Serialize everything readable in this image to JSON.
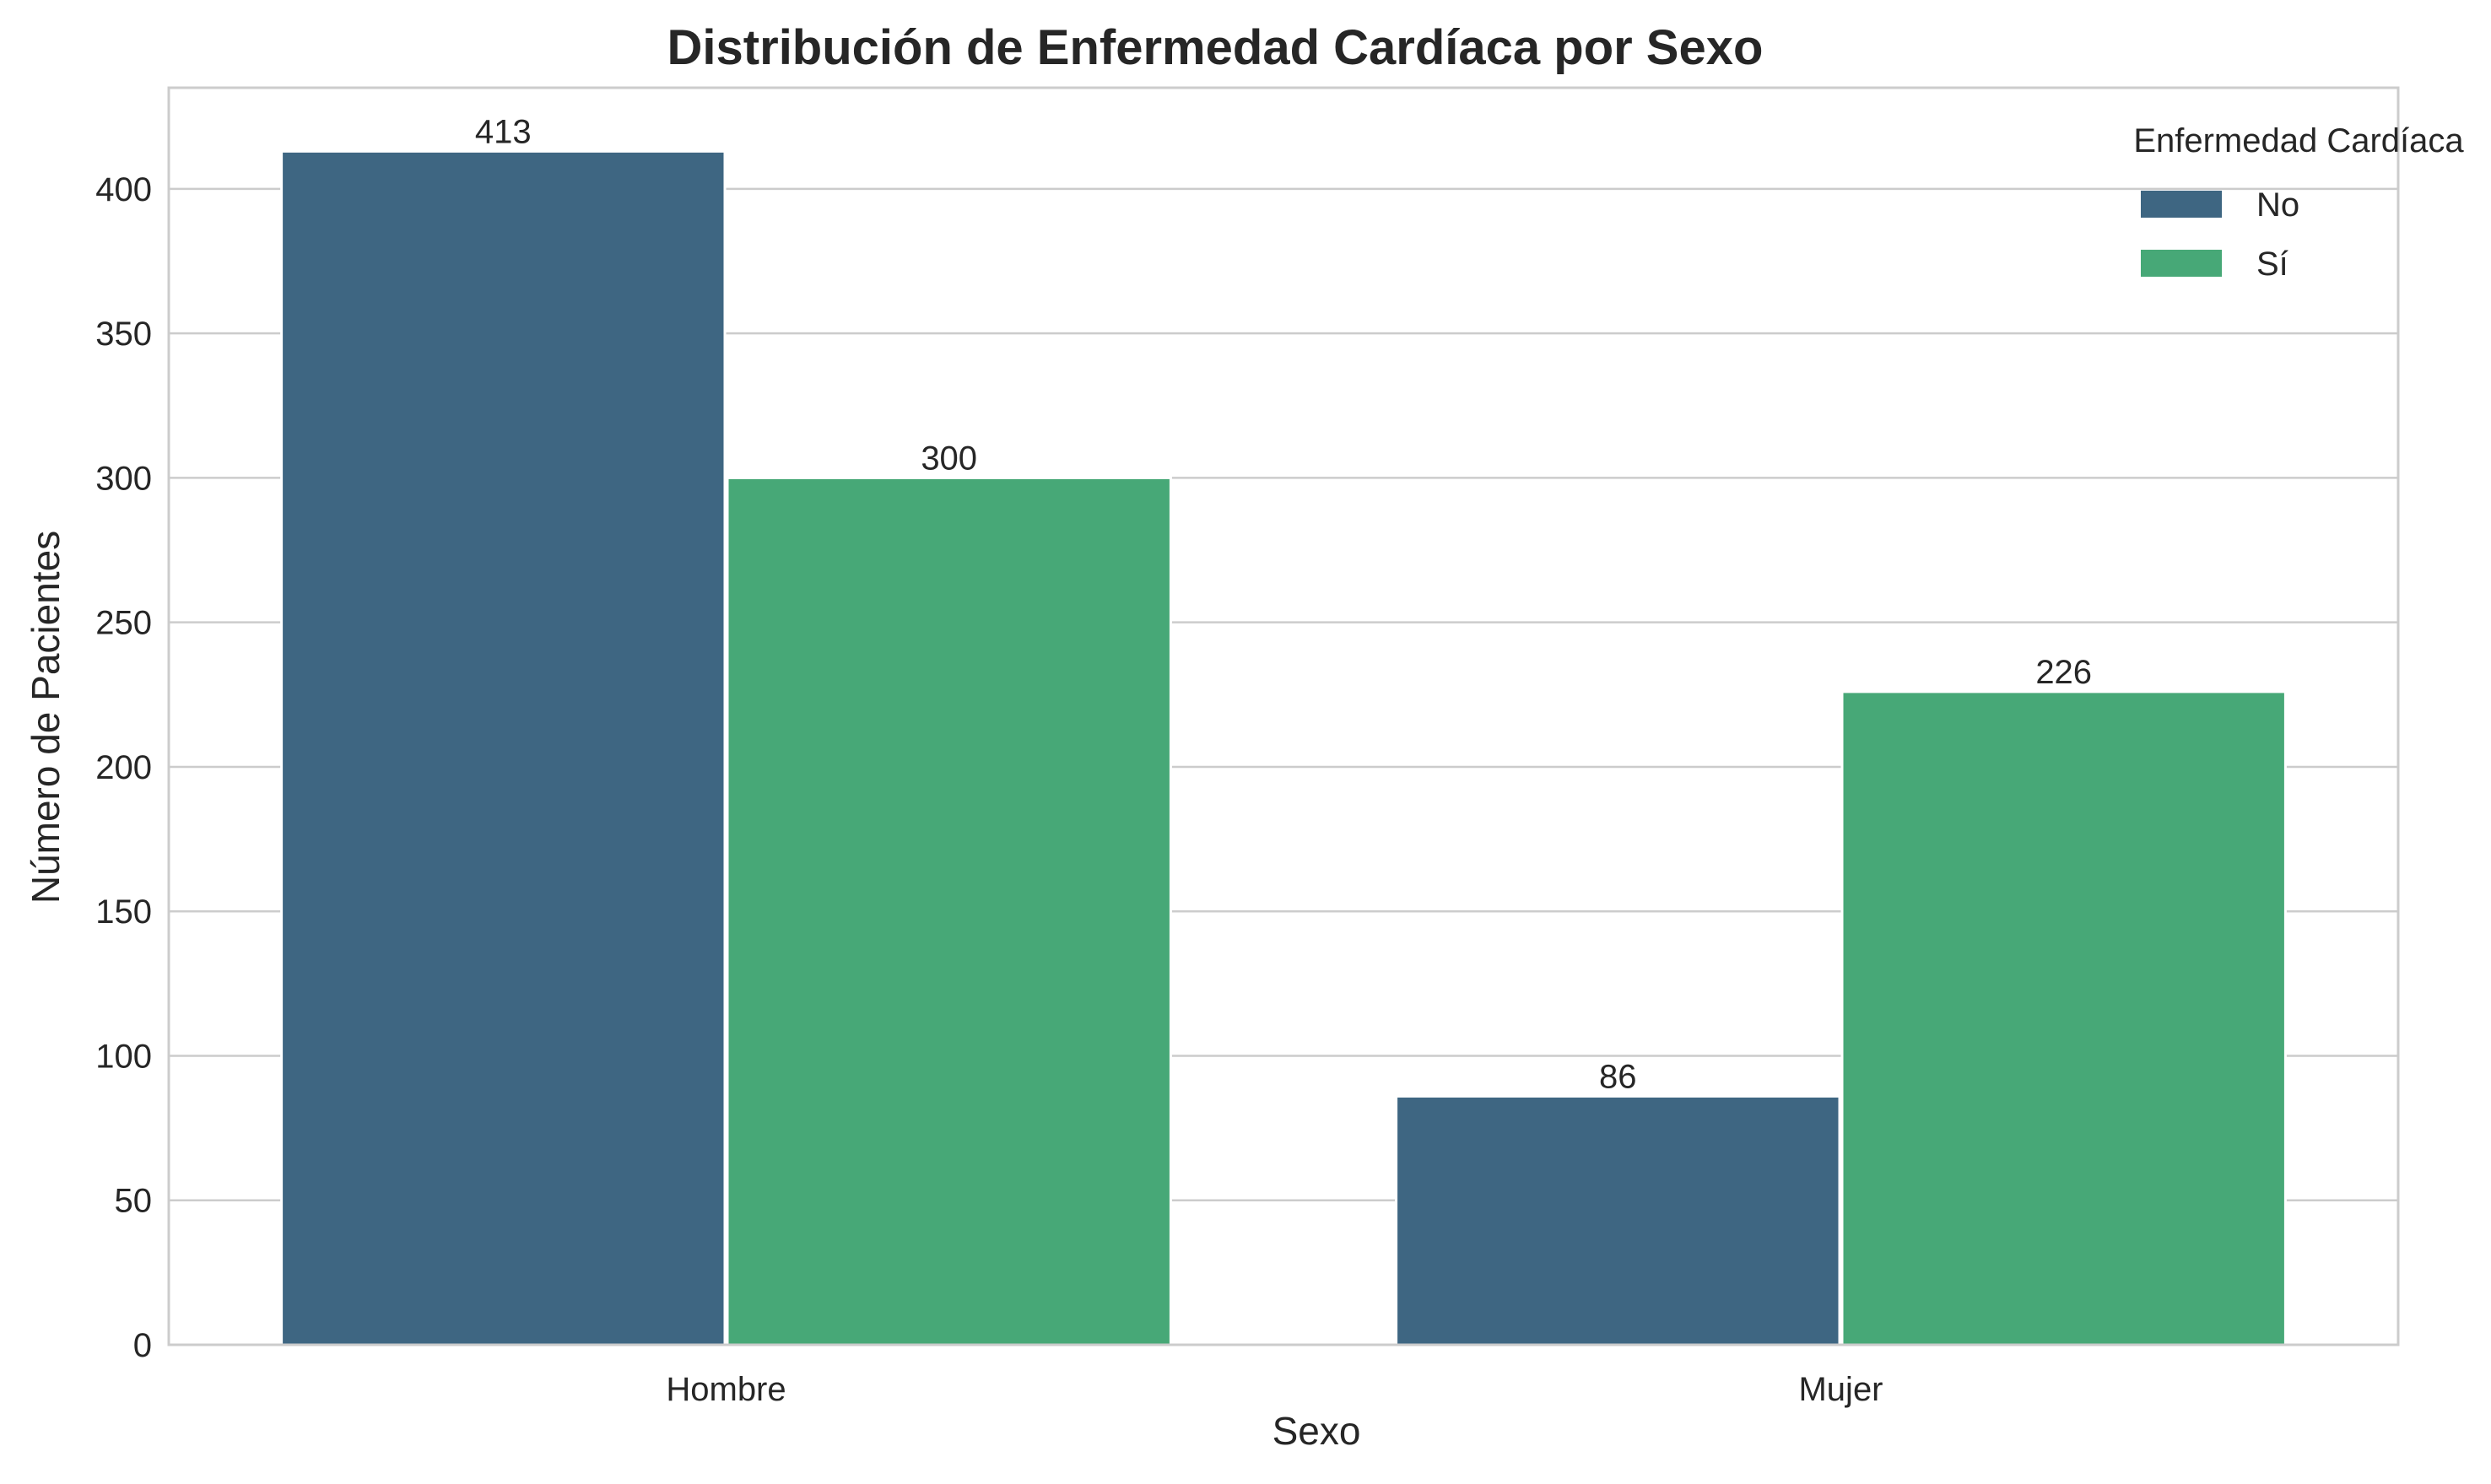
{
  "chart_data": {
    "type": "bar",
    "title": "Distribución de Enfermedad Cardíaca por Sexo",
    "xlabel": "Sexo",
    "ylabel": "Número de Pacientes",
    "categories": [
      "Hombre",
      "Mujer"
    ],
    "series": [
      {
        "name": "No",
        "values": [
          413,
          86
        ],
        "color": "#3e6682"
      },
      {
        "name": "Sí",
        "values": [
          300,
          226
        ],
        "color": "#47a877"
      }
    ],
    "ylim": [
      0,
      435
    ],
    "yticks": [
      0,
      50,
      100,
      150,
      200,
      250,
      300,
      350,
      400
    ],
    "grid": "horizontal",
    "legend": {
      "title": "Enfermedad Cardíaca",
      "placement": "top-right"
    },
    "colors": {
      "grid": "#cccccc",
      "frame": "#cccccc",
      "text": "#262626"
    }
  }
}
